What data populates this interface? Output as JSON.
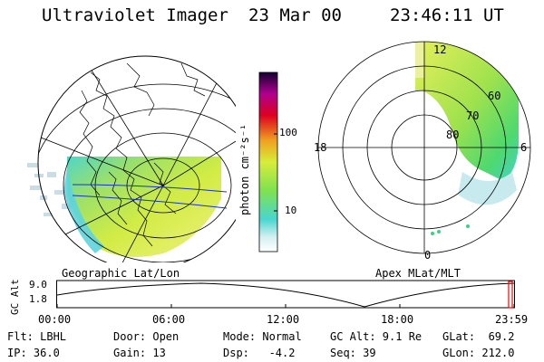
{
  "header": {
    "instrument": "Ultraviolet Imager",
    "date": "23 Mar 00",
    "time": "23:46:11 UT"
  },
  "left_map": {
    "caption": "Geographic Lat/Lon"
  },
  "right_map": {
    "caption": "Apex MLat/MLT",
    "mlt_labels": {
      "top": "12",
      "left": "18",
      "right": "6",
      "bottom": "0"
    },
    "lat_labels": [
      "60",
      "70",
      "80"
    ]
  },
  "colorbar": {
    "unit_label": "photon cm⁻²s⁻¹",
    "ticks": [
      "100",
      "10"
    ],
    "scale": "log"
  },
  "altitude_plot": {
    "ylabel": "GC Alt",
    "yticks": [
      "9.0",
      "1.8"
    ],
    "xticks": [
      "00:00",
      "06:00",
      "12:00",
      "18:00",
      "23:59"
    ],
    "marker_color": "#ff0000"
  },
  "info": {
    "filter": "Flt: LBHL",
    "ip": "IP: 36.0",
    "door": "Door: Open",
    "gain": "Gain: 13",
    "mode": "Mode: Normal",
    "dsp": "Dsp:   -4.2",
    "gc_alt": "GC Alt: 9.1 Re",
    "seq": "Seq: 39",
    "glat": "GLat:  69.2",
    "glon": "GLon: 212.0"
  }
}
